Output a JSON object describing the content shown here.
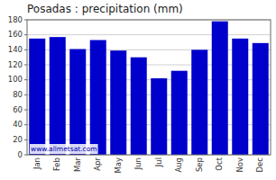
{
  "chart_data": {
    "type": "bar",
    "title": "Posadas : precipitation (mm)",
    "categories": [
      "Jan",
      "Feb",
      "Mar",
      "Apr",
      "May",
      "Jun",
      "Jul",
      "Aug",
      "Sep",
      "Oct",
      "Nov",
      "Dec"
    ],
    "values": [
      155,
      157,
      141,
      153,
      139,
      130,
      102,
      112,
      140,
      178,
      155,
      149
    ],
    "color": "#0000cc",
    "ylim": [
      0,
      180
    ],
    "yticks": [
      0,
      20,
      40,
      60,
      80,
      100,
      120,
      140,
      160,
      180
    ],
    "grid": true,
    "annotations": [
      "www.allmetsat.com"
    ]
  }
}
